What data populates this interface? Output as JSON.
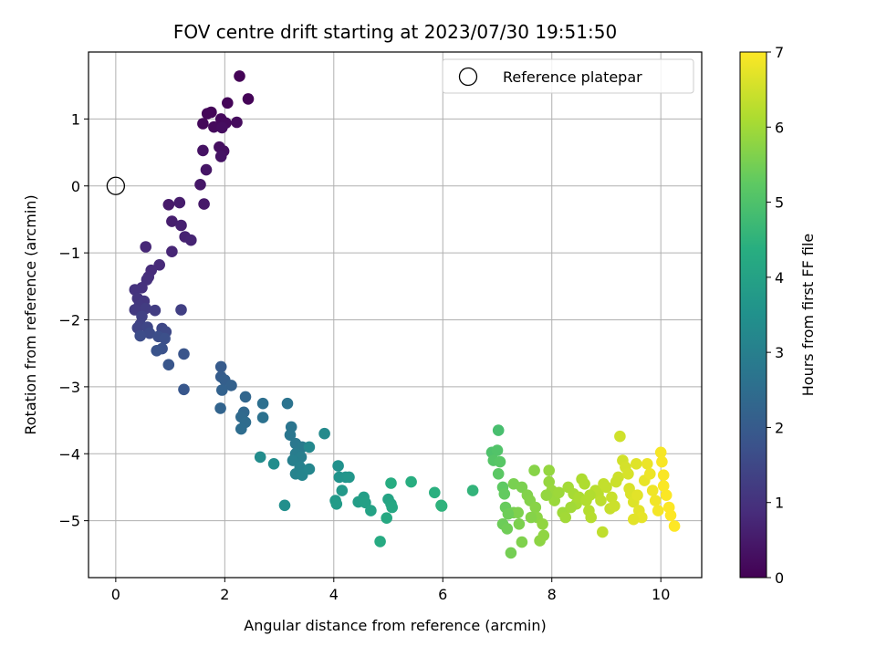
{
  "chart_data": {
    "type": "scatter",
    "title": "FOV centre drift starting at 2023/07/30 19:51:50",
    "xlabel": "Angular distance from reference (arcmin)",
    "ylabel": "Rotation from reference (arcmin)",
    "xlim": [
      -0.5,
      10.75
    ],
    "ylim": [
      -5.85,
      2.0
    ],
    "xticks": [
      0,
      2,
      4,
      6,
      8,
      10
    ],
    "yticks": [
      1,
      0,
      -1,
      -2,
      -3,
      -4,
      -5
    ],
    "grid": true,
    "legend": {
      "position": "top-right",
      "entries": [
        "Reference platepar"
      ]
    },
    "reference_point": {
      "x": 0,
      "y": 0
    },
    "colorbar": {
      "label": "Hours from first FF file",
      "min": 0,
      "max": 7,
      "ticks": [
        0,
        1,
        2,
        3,
        4,
        5,
        6,
        7
      ],
      "colormap": "viridis"
    },
    "points": [
      [
        2.27,
        1.64,
        0.05
      ],
      [
        2.43,
        1.3,
        0.06
      ],
      [
        2.05,
        1.24,
        0.08
      ],
      [
        1.75,
        1.1,
        0.1
      ],
      [
        1.68,
        1.08,
        0.12
      ],
      [
        1.6,
        0.93,
        0.13
      ],
      [
        1.93,
        1.0,
        0.15
      ],
      [
        2.02,
        0.94,
        0.17
      ],
      [
        1.8,
        0.88,
        0.19
      ],
      [
        2.22,
        0.95,
        0.21
      ],
      [
        1.95,
        0.87,
        0.24
      ],
      [
        1.9,
        0.58,
        0.27
      ],
      [
        1.98,
        0.52,
        0.3
      ],
      [
        1.6,
        0.53,
        0.33
      ],
      [
        1.93,
        0.44,
        0.36
      ],
      [
        1.66,
        0.24,
        0.39
      ],
      [
        1.55,
        0.02,
        0.43
      ],
      [
        1.62,
        -0.27,
        0.47
      ],
      [
        0.97,
        -0.28,
        0.5
      ],
      [
        1.17,
        -0.25,
        0.54
      ],
      [
        1.03,
        -0.53,
        0.58
      ],
      [
        1.2,
        -0.59,
        0.62
      ],
      [
        1.27,
        -0.76,
        0.66
      ],
      [
        1.38,
        -0.81,
        0.7
      ],
      [
        1.03,
        -0.98,
        0.74
      ],
      [
        0.55,
        -0.91,
        0.78
      ],
      [
        0.8,
        -1.18,
        0.82
      ],
      [
        0.65,
        -1.26,
        0.86
      ],
      [
        0.6,
        -1.36,
        0.9
      ],
      [
        0.57,
        -1.4,
        0.94
      ],
      [
        0.48,
        -1.52,
        0.98
      ],
      [
        0.35,
        -1.55,
        1.02
      ],
      [
        0.4,
        -1.68,
        1.06
      ],
      [
        0.52,
        -1.72,
        1.1
      ],
      [
        0.43,
        -1.79,
        1.14
      ],
      [
        0.35,
        -1.85,
        1.18
      ],
      [
        0.55,
        -1.83,
        1.22
      ],
      [
        0.72,
        -1.86,
        1.26
      ],
      [
        1.2,
        -1.85,
        1.3
      ],
      [
        0.48,
        -1.95,
        1.34
      ],
      [
        0.45,
        -2.07,
        1.38
      ],
      [
        0.4,
        -2.12,
        1.42
      ],
      [
        0.58,
        -2.11,
        1.46
      ],
      [
        0.85,
        -2.13,
        1.5
      ],
      [
        0.92,
        -2.18,
        1.54
      ],
      [
        0.62,
        -2.2,
        1.58
      ],
      [
        0.45,
        -2.24,
        1.62
      ],
      [
        0.78,
        -2.25,
        1.66
      ],
      [
        0.9,
        -2.28,
        1.7
      ],
      [
        0.85,
        -2.43,
        1.74
      ],
      [
        0.75,
        -2.46,
        1.78
      ],
      [
        1.25,
        -2.51,
        1.82
      ],
      [
        0.97,
        -2.67,
        1.86
      ],
      [
        1.25,
        -3.04,
        1.9
      ],
      [
        1.93,
        -2.7,
        2.0
      ],
      [
        1.93,
        -2.85,
        2.05
      ],
      [
        2.0,
        -2.9,
        2.1
      ],
      [
        2.12,
        -2.98,
        2.15
      ],
      [
        1.95,
        -3.05,
        2.2
      ],
      [
        1.92,
        -3.32,
        2.25
      ],
      [
        2.38,
        -3.15,
        2.3
      ],
      [
        2.35,
        -3.38,
        2.35
      ],
      [
        2.3,
        -3.45,
        2.4
      ],
      [
        2.38,
        -3.53,
        2.45
      ],
      [
        2.3,
        -3.63,
        2.5
      ],
      [
        2.7,
        -3.25,
        2.55
      ],
      [
        2.7,
        -3.46,
        2.6
      ],
      [
        3.15,
        -3.25,
        2.65
      ],
      [
        3.22,
        -3.6,
        2.7
      ],
      [
        3.2,
        -3.72,
        2.75
      ],
      [
        3.3,
        -3.85,
        2.8
      ],
      [
        3.42,
        -3.9,
        2.85
      ],
      [
        3.3,
        -4.0,
        2.9
      ],
      [
        3.4,
        -4.05,
        2.95
      ],
      [
        3.25,
        -4.1,
        3.0
      ],
      [
        3.38,
        -4.2,
        3.05
      ],
      [
        3.3,
        -4.3,
        3.1
      ],
      [
        3.42,
        -4.32,
        3.15
      ],
      [
        3.55,
        -4.23,
        3.2
      ],
      [
        3.55,
        -3.9,
        3.25
      ],
      [
        3.83,
        -3.7,
        3.3
      ],
      [
        2.65,
        -4.05,
        3.35
      ],
      [
        2.9,
        -4.15,
        3.4
      ],
      [
        3.1,
        -4.77,
        3.45
      ],
      [
        4.08,
        -4.18,
        3.5
      ],
      [
        4.1,
        -4.35,
        3.55
      ],
      [
        4.22,
        -4.35,
        3.6
      ],
      [
        4.28,
        -4.35,
        3.65
      ],
      [
        4.15,
        -4.55,
        3.7
      ],
      [
        4.03,
        -4.7,
        3.75
      ],
      [
        4.05,
        -4.75,
        3.8
      ],
      [
        4.45,
        -4.72,
        3.85
      ],
      [
        4.55,
        -4.65,
        3.9
      ],
      [
        4.58,
        -4.73,
        3.95
      ],
      [
        4.68,
        -4.85,
        4.0
      ],
      [
        5.0,
        -4.68,
        4.05
      ],
      [
        5.05,
        -4.75,
        4.1
      ],
      [
        5.07,
        -4.8,
        4.15
      ],
      [
        4.97,
        -4.96,
        4.2
      ],
      [
        4.85,
        -5.31,
        4.25
      ],
      [
        5.05,
        -4.44,
        4.3
      ],
      [
        5.42,
        -4.42,
        4.35
      ],
      [
        5.85,
        -4.58,
        4.4
      ],
      [
        5.97,
        -4.77,
        4.45
      ],
      [
        5.98,
        -4.78,
        4.5
      ],
      [
        6.55,
        -4.55,
        4.55
      ],
      [
        7.02,
        -3.65,
        4.9
      ],
      [
        6.9,
        -3.98,
        5.0
      ],
      [
        7.0,
        -3.95,
        5.05
      ],
      [
        6.93,
        -4.1,
        5.1
      ],
      [
        7.05,
        -4.12,
        5.15
      ],
      [
        7.02,
        -4.3,
        5.2
      ],
      [
        7.1,
        -4.5,
        5.25
      ],
      [
        7.13,
        -4.6,
        5.3
      ],
      [
        7.15,
        -4.8,
        5.35
      ],
      [
        7.1,
        -5.05,
        5.4
      ],
      [
        7.18,
        -5.12,
        5.45
      ],
      [
        7.25,
        -5.48,
        5.5
      ],
      [
        7.3,
        -4.88,
        5.52
      ],
      [
        7.3,
        -4.45,
        5.55
      ],
      [
        7.45,
        -4.5,
        5.57
      ],
      [
        7.38,
        -4.88,
        5.6
      ],
      [
        7.45,
        -5.32,
        5.62
      ],
      [
        7.55,
        -4.62,
        5.65
      ],
      [
        7.6,
        -4.7,
        5.67
      ],
      [
        7.68,
        -4.25,
        5.7
      ],
      [
        7.7,
        -4.8,
        5.72
      ],
      [
        7.73,
        -4.95,
        5.75
      ],
      [
        7.78,
        -5.3,
        5.77
      ],
      [
        7.85,
        -5.22,
        5.8
      ],
      [
        7.83,
        -5.05,
        5.82
      ],
      [
        7.95,
        -4.25,
        5.85
      ],
      [
        7.95,
        -4.42,
        5.87
      ],
      [
        8.0,
        -4.55,
        5.9
      ],
      [
        8.05,
        -4.7,
        5.92
      ],
      [
        8.13,
        -4.58,
        5.95
      ],
      [
        8.2,
        -4.88,
        5.97
      ],
      [
        8.25,
        -4.95,
        6.0
      ],
      [
        8.3,
        -4.5,
        6.02
      ],
      [
        8.4,
        -4.6,
        6.05
      ],
      [
        8.45,
        -4.75,
        6.07
      ],
      [
        8.5,
        -4.65,
        6.1
      ],
      [
        8.55,
        -4.38,
        6.12
      ],
      [
        8.6,
        -4.45,
        6.15
      ],
      [
        8.63,
        -4.7,
        6.17
      ],
      [
        8.68,
        -4.85,
        6.2
      ],
      [
        8.72,
        -4.95,
        6.22
      ],
      [
        8.8,
        -4.55,
        6.25
      ],
      [
        8.85,
        -4.6,
        6.27
      ],
      [
        8.9,
        -4.7,
        6.3
      ],
      [
        8.93,
        -5.17,
        6.32
      ],
      [
        8.95,
        -4.45,
        6.35
      ],
      [
        9.0,
        -4.5,
        6.37
      ],
      [
        9.07,
        -4.82,
        6.4
      ],
      [
        9.1,
        -4.65,
        6.42
      ],
      [
        9.15,
        -4.78,
        6.45
      ],
      [
        9.22,
        -4.35,
        6.47
      ],
      [
        9.25,
        -3.74,
        6.5
      ],
      [
        9.3,
        -4.1,
        6.52
      ],
      [
        9.35,
        -4.2,
        6.55
      ],
      [
        9.4,
        -4.3,
        6.57
      ],
      [
        9.42,
        -4.52,
        6.6
      ],
      [
        9.45,
        -4.6,
        6.62
      ],
      [
        9.5,
        -4.72,
        6.65
      ],
      [
        9.55,
        -4.15,
        6.67
      ],
      [
        9.57,
        -4.62,
        6.7
      ],
      [
        9.6,
        -4.85,
        6.72
      ],
      [
        9.65,
        -4.95,
        6.75
      ],
      [
        9.7,
        -4.4,
        6.77
      ],
      [
        9.75,
        -4.15,
        6.8
      ],
      [
        9.8,
        -4.3,
        6.82
      ],
      [
        9.85,
        -4.55,
        6.85
      ],
      [
        9.9,
        -4.7,
        6.87
      ],
      [
        9.95,
        -4.85,
        6.9
      ],
      [
        10.0,
        -3.98,
        6.92
      ],
      [
        10.02,
        -4.12,
        6.94
      ],
      [
        10.05,
        -4.32,
        6.96
      ],
      [
        10.05,
        -4.48,
        6.97
      ],
      [
        10.1,
        -4.62,
        6.98
      ],
      [
        10.15,
        -4.8,
        6.99
      ],
      [
        10.18,
        -4.92,
        7.0
      ],
      [
        10.25,
        -5.08,
        7.0
      ],
      [
        9.5,
        -4.98,
        6.7
      ],
      [
        9.18,
        -4.42,
        6.45
      ],
      [
        8.7,
        -4.62,
        6.18
      ],
      [
        8.35,
        -4.8,
        6.0
      ],
      [
        7.9,
        -4.62,
        5.85
      ],
      [
        7.62,
        -4.95,
        5.68
      ],
      [
        7.4,
        -5.05,
        5.58
      ],
      [
        7.2,
        -4.9,
        5.42
      ]
    ]
  },
  "colors": {
    "reference_marker": "#000000",
    "grid": "#b0b0b0"
  }
}
